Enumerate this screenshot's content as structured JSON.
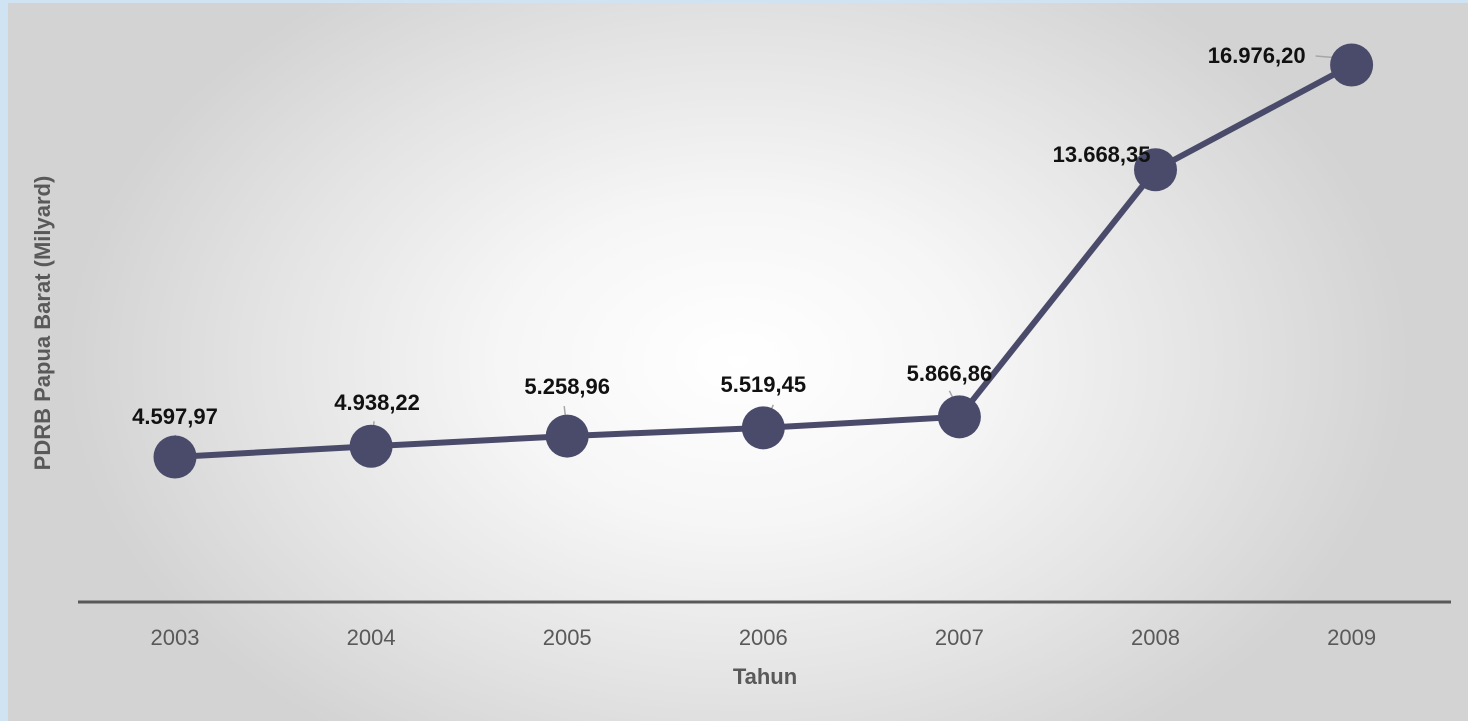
{
  "chart_data": {
    "type": "line",
    "title": "",
    "xlabel": "Tahun",
    "ylabel": "PDRB Papua Barat (Milyard)",
    "categories": [
      "2003",
      "2004",
      "2005",
      "2006",
      "2007",
      "2008",
      "2009"
    ],
    "series": [
      {
        "values": [
          4597.97,
          4938.22,
          5258.96,
          5519.45,
          5866.86,
          13668.35,
          16976.2
        ],
        "labels": [
          "4.597,97",
          "4.938,22",
          "5.258,96",
          "5.519,45",
          "5.866,86",
          "13.668,35",
          "16.976,20"
        ]
      }
    ],
    "ylim": [
      0,
      17500
    ],
    "grid": false,
    "legend": "none",
    "colors": {
      "line": "#4a4a6a",
      "marker": "#4a4a6a",
      "axis": "#595959",
      "tick_text": "#595959",
      "label_text": "#111111",
      "leader": "#a6a6a6"
    }
  }
}
